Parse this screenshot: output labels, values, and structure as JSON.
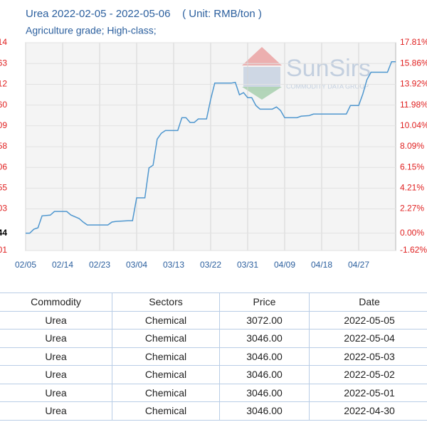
{
  "chart_data": {
    "type": "line",
    "title": "Urea 2022-02-05 - 2022-05-06    ( Unit: RMB/ton )",
    "subtitle": "Agriculture grade; High-class;",
    "watermark": {
      "brand": "SunSirs",
      "tagline": "COMMODITY DATA GROUP"
    },
    "x": [
      "2022-02-05",
      "2022-02-06",
      "2022-02-07",
      "2022-02-08",
      "2022-02-09",
      "2022-02-11",
      "2022-02-12",
      "2022-02-15",
      "2022-02-16",
      "2022-02-18",
      "2022-02-19",
      "2022-02-20",
      "2022-02-25",
      "2022-02-26",
      "2022-02-27",
      "2022-03-02",
      "2022-03-03",
      "2022-03-04",
      "2022-03-06",
      "2022-03-07",
      "2022-03-08",
      "2022-03-09",
      "2022-03-10",
      "2022-03-11",
      "2022-03-14",
      "2022-03-15",
      "2022-03-16",
      "2022-03-17",
      "2022-03-18",
      "2022-03-19",
      "2022-03-21",
      "2022-03-22",
      "2022-03-23",
      "2022-03-27",
      "2022-03-28",
      "2022-03-29",
      "2022-03-30",
      "2022-03-31",
      "2022-04-01",
      "2022-04-02",
      "2022-04-03",
      "2022-04-06",
      "2022-04-07",
      "2022-04-08",
      "2022-04-09",
      "2022-04-12",
      "2022-04-13",
      "2022-04-15",
      "2022-04-16",
      "2022-04-24",
      "2022-04-25",
      "2022-04-27",
      "2022-04-28",
      "2022-04-29",
      "2022-04-30",
      "2022-05-04",
      "2022-05-05",
      "2022-05-06"
    ],
    "series": [
      {
        "color": "#4f97cf",
        "values": [
          0,
          0,
          0.37,
          0.5,
          1.62,
          1.69,
          2.03,
          2.03,
          1.7,
          1.37,
          1.04,
          0.77,
          0.77,
          1.04,
          1.1,
          1.17,
          1.17,
          3.3,
          3.3,
          6.1,
          6.36,
          8.8,
          9.34,
          9.6,
          9.6,
          10.8,
          10.8,
          10.35,
          10.35,
          10.68,
          10.68,
          12.5,
          14.03,
          14.03,
          14.1,
          12.94,
          13.14,
          12.67,
          12.67,
          11.94,
          11.6,
          11.6,
          11.8,
          11.47,
          10.8,
          10.8,
          10.94,
          11.0,
          11.14,
          11.14,
          11.94,
          11.94,
          13.0,
          14.35,
          15.05,
          15.05,
          16.03,
          16.03
        ]
      }
    ],
    "xlim": [
      "2022-02-05",
      "2022-05-06"
    ],
    "xticks": [
      {
        "value": "2022-02-05",
        "label": "02/05"
      },
      {
        "value": "2022-02-14",
        "label": "02/14"
      },
      {
        "value": "2022-02-23",
        "label": "02/23"
      },
      {
        "value": "2022-03-04",
        "label": "03/04"
      },
      {
        "value": "2022-03-13",
        "label": "03/13"
      },
      {
        "value": "2022-03-22",
        "label": "03/22"
      },
      {
        "value": "2022-03-31",
        "label": "03/31"
      },
      {
        "value": "2022-04-09",
        "label": "04/09"
      },
      {
        "value": "2022-04-18",
        "label": "04/18"
      },
      {
        "value": "2022-04-27",
        "label": "04/27"
      }
    ],
    "ylim": [
      -1.62,
      17.81
    ],
    "yticks": [
      {
        "value": 17.81,
        "label": "17.81%",
        "left_label": "14"
      },
      {
        "value": 15.86,
        "label": "15.86%",
        "left_label": "63"
      },
      {
        "value": 13.92,
        "label": "13.92%",
        "left_label": "12"
      },
      {
        "value": 11.98,
        "label": "11.98%",
        "left_label": "60"
      },
      {
        "value": 10.04,
        "label": "10.04%",
        "left_label": "09"
      },
      {
        "value": 8.09,
        "label": "8.09%",
        "left_label": "58"
      },
      {
        "value": 6.15,
        "label": "6.15%",
        "left_label": "06"
      },
      {
        "value": 4.21,
        "label": "4.21%",
        "left_label": "55"
      },
      {
        "value": 2.27,
        "label": "2.27%",
        "left_label": "03"
      },
      {
        "value": 0,
        "label": "0.00%",
        "left_label": "44"
      },
      {
        "value": -1.62,
        "label": "-1.62%",
        "left_label": "01"
      }
    ],
    "grid": true
  },
  "table": {
    "header": [
      "Commodity",
      "Sectors",
      "Price",
      "Date"
    ],
    "rows": [
      [
        "Urea",
        "Chemical",
        "3072.00",
        "2022-05-05"
      ],
      [
        "Urea",
        "Chemical",
        "3046.00",
        "2022-05-04"
      ],
      [
        "Urea",
        "Chemical",
        "3046.00",
        "2022-05-03"
      ],
      [
        "Urea",
        "Chemical",
        "3046.00",
        "2022-05-02"
      ],
      [
        "Urea",
        "Chemical",
        "3046.00",
        "2022-05-01"
      ],
      [
        "Urea",
        "Chemical",
        "3046.00",
        "2022-04-30"
      ]
    ]
  }
}
